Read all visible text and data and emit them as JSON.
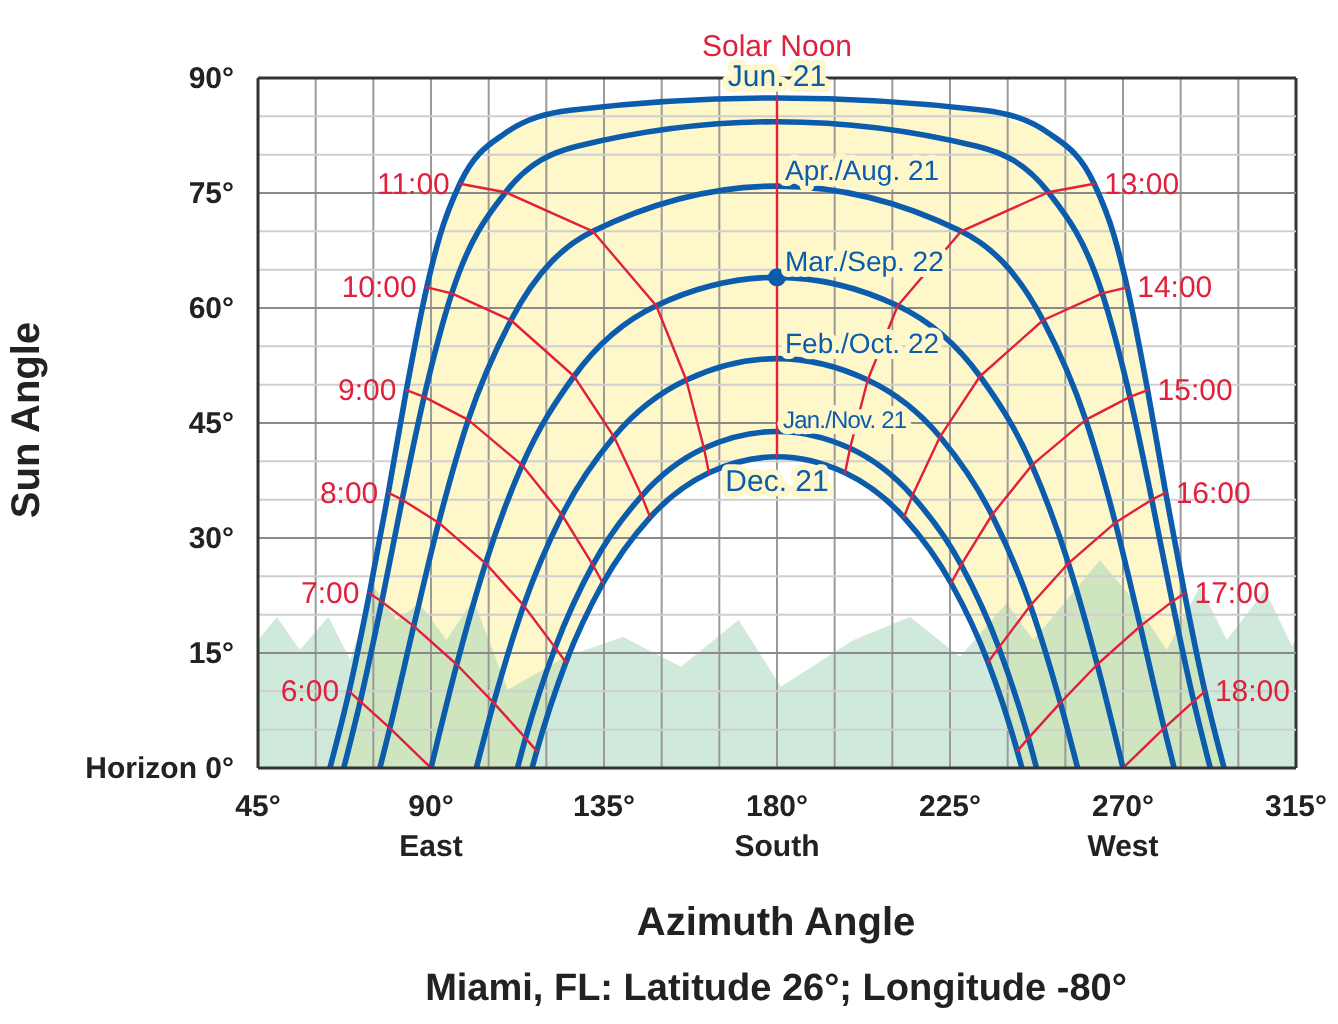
{
  "chart_data": {
    "type": "line",
    "xlabel": "Azimuth Angle",
    "ylabel": "Sun Angle",
    "annotations": [
      "Miami, FL: Latitude 26°; Longitude -80°"
    ],
    "xlim": [
      45,
      315
    ],
    "ylim": [
      0,
      90
    ],
    "xticks": [
      {
        "value": 45,
        "label": "45°"
      },
      {
        "value": 60,
        "label": null
      },
      {
        "value": 75,
        "label": null
      },
      {
        "value": 90,
        "label": "90°\nEast"
      },
      {
        "value": 105,
        "label": null
      },
      {
        "value": 120,
        "label": null
      },
      {
        "value": 135,
        "label": "135°"
      },
      {
        "value": 150,
        "label": null
      },
      {
        "value": 165,
        "label": null
      },
      {
        "value": 180,
        "label": "180°\nSouth"
      },
      {
        "value": 195,
        "label": null
      },
      {
        "value": 210,
        "label": null
      },
      {
        "value": 225,
        "label": "225°"
      },
      {
        "value": 240,
        "label": null
      },
      {
        "value": 255,
        "label": null
      },
      {
        "value": 270,
        "label": "270°\nWest"
      },
      {
        "value": 285,
        "label": null
      },
      {
        "value": 300,
        "label": null
      },
      {
        "value": 315,
        "label": "315°"
      }
    ],
    "yticks": [
      {
        "value": 0,
        "label": "Horizon 0°"
      },
      {
        "value": 5,
        "label": null
      },
      {
        "value": 10,
        "label": null
      },
      {
        "value": 15,
        "label": "15°"
      },
      {
        "value": 20,
        "label": null
      },
      {
        "value": 25,
        "label": null
      },
      {
        "value": 30,
        "label": "30°"
      },
      {
        "value": 35,
        "label": null
      },
      {
        "value": 40,
        "label": null
      },
      {
        "value": 45,
        "label": "45°"
      },
      {
        "value": 50,
        "label": null
      },
      {
        "value": 55,
        "label": null
      },
      {
        "value": 60,
        "label": "60°"
      },
      {
        "value": 65,
        "label": null
      },
      {
        "value": 70,
        "label": null
      },
      {
        "value": 75,
        "label": "75°"
      },
      {
        "value": 80,
        "label": null
      },
      {
        "value": 85,
        "label": null
      },
      {
        "value": 90,
        "label": "90°"
      }
    ],
    "grid": true,
    "legend": false,
    "marker": "none",
    "series": [
      {
        "type": "area",
        "color": "#a0d4b8",
        "x": [
          45,
          49.9,
          55.9,
          63.3,
          69,
          75,
          81,
          87,
          94,
          101,
          110,
          125,
          140,
          155,
          170,
          181,
          199.9,
          214.6,
          227.6,
          239.7,
          246.7,
          264,
          272.7,
          281.4,
          290,
          297,
          307,
          314,
          315
        ],
        "values": [
          16.7,
          19.7,
          15.4,
          19.7,
          14.1,
          23.7,
          19.3,
          21.5,
          16.7,
          21.9,
          10.2,
          14.5,
          17.1,
          13.2,
          19.3,
          10.6,
          16.7,
          19.7,
          14.5,
          21.5,
          16.7,
          27.1,
          21.9,
          15.4,
          23.7,
          16.7,
          23.2,
          15.8,
          17
        ]
      },
      {
        "name": "Jun. 21",
        "color": "#0b5cad",
        "x": [
          63.7,
          68.7,
          74.0,
          78.9,
          83.6,
          88.9,
          92.3,
          97.5,
          109.0,
          126.2,
          180,
          233.8,
          251.0,
          262.5,
          267.7,
          271.1,
          276.4,
          281.1,
          286.0,
          291.3,
          296.3
        ],
        "values": [
          0,
          10.0,
          22.8,
          35.9,
          49.3,
          62.7,
          69.4,
          76.2,
          82.7,
          85.8,
          87.4,
          85.8,
          82.7,
          76.2,
          69.4,
          62.7,
          49.3,
          35.9,
          22.8,
          10.0,
          0
        ]
      },
      {
        "color": "#0b5cad",
        "x": [
          67.3,
          71.6,
          77.2,
          82.5,
          88.2,
          95.4,
          109.4,
          128.0,
          180,
          232.0,
          250.6,
          264.6,
          271.8,
          277.5,
          282.8,
          288.4,
          292.7
        ],
        "values": [
          0,
          8.7,
          21.7,
          35.0,
          48.4,
          61.9,
          75.1,
          81.1,
          84.3,
          81.1,
          75.1,
          61.9,
          48.4,
          35.0,
          21.7,
          8.7,
          0
        ]
      },
      {
        "name": "Apr./Aug. 21",
        "color": "#0b5cad",
        "x": [
          76.7,
          79.3,
          85.5,
          92.0,
          99.7,
          110.8,
          132.1,
          180,
          227.9,
          249.2,
          260.3,
          268.0,
          274.5,
          280.7,
          283.3
        ],
        "values": [
          0,
          5.2,
          18.5,
          32.0,
          45.4,
          58.4,
          70.0,
          75.9,
          70.0,
          58.4,
          45.4,
          32.0,
          18.5,
          5.2,
          0
        ]
      },
      {
        "name": "Mar./Sep. 22",
        "color": "#0b5cad",
        "x": [
          90,
          96.7,
          104.2,
          113.7,
          127.2,
          148.6,
          180,
          211.4,
          232.8,
          246.3,
          255.8,
          263.3,
          270
        ],
        "values": [
          0,
          13.5,
          26.7,
          39.5,
          51.1,
          60.3,
          64.0,
          60.3,
          51.1,
          39.5,
          26.7,
          13.5,
          0
        ]
      },
      {
        "name": "Feb./Oct. 22",
        "color": "#0b5cad",
        "x": [
          101.8,
          106.3,
          114.1,
          124.1,
          137.6,
          156.4,
          180,
          203.6,
          222.4,
          235.9,
          245.9,
          253.7,
          258.2
        ],
        "values": [
          0,
          8.5,
          21.2,
          33.0,
          43.2,
          50.6,
          53.4,
          50.6,
          43.2,
          33.0,
          21.2,
          8.5,
          0
        ]
      },
      {
        "name": "Jan./Nov. 21",
        "color": "#0b5cad",
        "x": [
          112.5,
          114.6,
          122.3,
          132.1,
          144.8,
          161.0,
          180,
          199.0,
          215.2,
          227.9,
          237.7,
          245.4,
          247.5
        ],
        "values": [
          0,
          3.9,
          15.7,
          26.5,
          35.5,
          41.7,
          43.9,
          41.7,
          35.5,
          26.5,
          15.7,
          3.9,
          0
        ]
      },
      {
        "name": "Dec. 21",
        "color": "#0b5cad",
        "x": [
          116.3,
          117.5,
          125.1,
          134.7,
          147.0,
          162.3,
          180,
          197.7,
          213.0,
          225.3,
          234.9,
          242.5,
          243.7
        ],
        "values": [
          0,
          2.2,
          13.8,
          24.1,
          32.7,
          38.5,
          40.6,
          38.5,
          32.7,
          24.1,
          13.8,
          2.2,
          0
        ]
      },
      {
        "name": "6:00",
        "color": "#e0203c",
        "x": [
          68.7,
          71.6,
          79.3,
          90.0
        ],
        "values": [
          10.0,
          8.7,
          5.2,
          0
        ]
      },
      {
        "name": "7:00",
        "color": "#e0203c",
        "x": [
          74.0,
          77.2,
          85.5,
          96.7,
          106.3,
          114.6,
          117.5
        ],
        "values": [
          22.8,
          21.7,
          18.5,
          13.5,
          8.5,
          3.9,
          2.2
        ]
      },
      {
        "name": "8:00",
        "color": "#e0203c",
        "x": [
          78.9,
          82.5,
          92.0,
          104.2,
          114.1,
          122.3,
          125.1
        ],
        "values": [
          35.9,
          35.0,
          32.0,
          26.7,
          21.2,
          15.7,
          13.8
        ]
      },
      {
        "name": "9:00",
        "color": "#e0203c",
        "x": [
          83.6,
          88.2,
          99.7,
          113.7,
          124.1,
          132.1,
          134.7
        ],
        "values": [
          49.3,
          48.4,
          45.4,
          39.5,
          33.0,
          26.5,
          24.1
        ]
      },
      {
        "name": "10:00",
        "color": "#e0203c",
        "x": [
          88.9,
          95.4,
          110.8,
          127.2,
          137.6,
          144.8,
          147.0
        ],
        "values": [
          62.7,
          61.9,
          58.4,
          51.1,
          43.2,
          35.5,
          32.7
        ]
      },
      {
        "name": "11:00",
        "color": "#e0203c",
        "x": [
          97.5,
          109.4,
          132.1,
          148.6,
          156.4,
          161.0,
          162.3
        ],
        "values": [
          76.2,
          75.1,
          70.0,
          60.3,
          50.6,
          41.7,
          38.5
        ]
      },
      {
        "name": "Solar Noon",
        "color": "#e0203c",
        "x": [
          180,
          180
        ],
        "values": [
          87.4,
          40.6
        ]
      },
      {
        "name": "13:00",
        "color": "#e0203c",
        "x": [
          262.5,
          250.6,
          227.9,
          211.4,
          203.6,
          199.0,
          197.7
        ],
        "values": [
          76.2,
          75.1,
          70.0,
          60.3,
          50.6,
          41.7,
          38.5
        ]
      },
      {
        "name": "14:00",
        "color": "#e0203c",
        "x": [
          271.1,
          264.6,
          249.2,
          232.8,
          222.4,
          215.2,
          213.0
        ],
        "values": [
          62.7,
          61.9,
          58.4,
          51.1,
          43.2,
          35.5,
          32.7
        ]
      },
      {
        "name": "15:00",
        "color": "#e0203c",
        "x": [
          276.4,
          271.8,
          260.3,
          246.3,
          235.9,
          227.9,
          225.3
        ],
        "values": [
          49.3,
          48.4,
          45.4,
          39.5,
          33.0,
          26.5,
          24.1
        ]
      },
      {
        "name": "16:00",
        "color": "#e0203c",
        "x": [
          281.1,
          277.5,
          268.0,
          255.8,
          245.9,
          237.7,
          234.9
        ],
        "values": [
          35.9,
          35.0,
          32.0,
          26.7,
          21.2,
          15.7,
          13.8
        ]
      },
      {
        "name": "17:00",
        "color": "#e0203c",
        "x": [
          286.0,
          282.8,
          274.5,
          263.3,
          253.7,
          245.4,
          242.5
        ],
        "values": [
          22.8,
          21.7,
          18.5,
          13.5,
          8.5,
          3.9,
          2.2
        ]
      },
      {
        "name": "18:00",
        "color": "#e0203c",
        "x": [
          291.3,
          288.4,
          280.7,
          270.0
        ],
        "values": [
          10.0,
          8.7,
          5.2,
          0
        ]
      },
      {
        "type": "scatter",
        "marker": "circle",
        "color": "#0b5cad",
        "x": [
          180
        ],
        "values": [
          64.0
        ]
      }
    ]
  }
}
